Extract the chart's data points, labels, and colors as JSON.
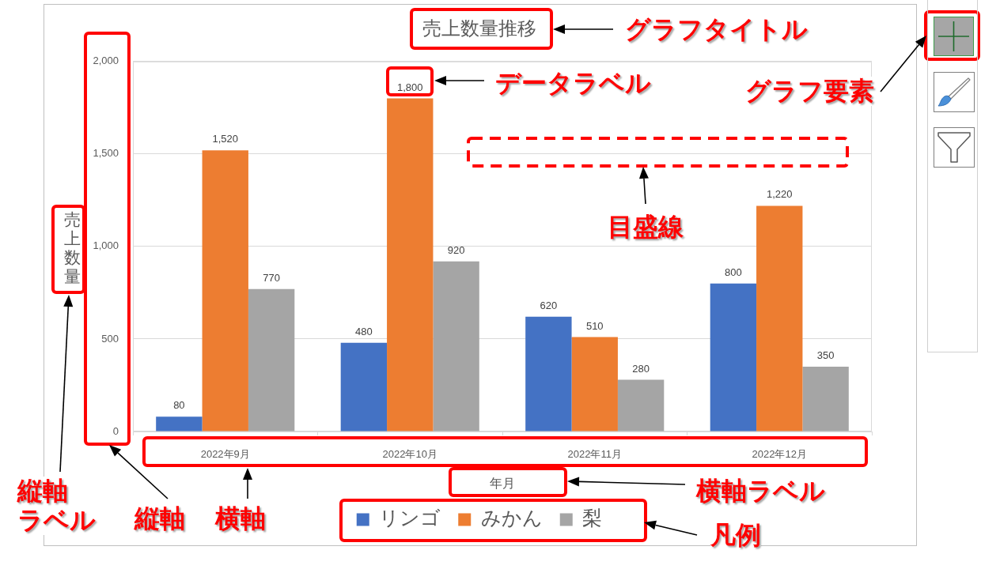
{
  "chart_data": {
    "type": "bar",
    "title": "売上数量推移",
    "xlabel": "年月",
    "ylabel": "売上数量",
    "categories": [
      "2022年9月",
      "2022年10月",
      "2022年11月",
      "2022年12月"
    ],
    "series": [
      {
        "name": "リンゴ",
        "color": "#4472c4",
        "values": [
          80,
          480,
          620,
          800
        ],
        "value_labels": [
          "80",
          "480",
          "620",
          "800"
        ]
      },
      {
        "name": "みかん",
        "color": "#ed7d31",
        "values": [
          1520,
          1800,
          510,
          1220
        ],
        "value_labels": [
          "1,520",
          "1,800",
          "510",
          "1,220"
        ]
      },
      {
        "name": "梨",
        "color": "#a5a5a5",
        "values": [
          770,
          920,
          280,
          350
        ],
        "value_labels": [
          "770",
          "920",
          "280",
          "350"
        ]
      }
    ],
    "ylim": [
      0,
      2000
    ],
    "yticks": [
      0,
      500,
      {
        "value": 1000,
        "label": "1,000"
      },
      {
        "value": 1500,
        "label": "1,500"
      },
      {
        "value": 2000,
        "label": "2,000"
      }
    ],
    "grid": "y",
    "legend": "bottom",
    "annotations": [
      "グラフタイトル",
      "データラベル",
      "グラフ要素",
      "目盛線",
      "縦軸ラベル",
      "縦軸",
      "横軸",
      "横軸ラベル",
      "凡例"
    ]
  }
}
